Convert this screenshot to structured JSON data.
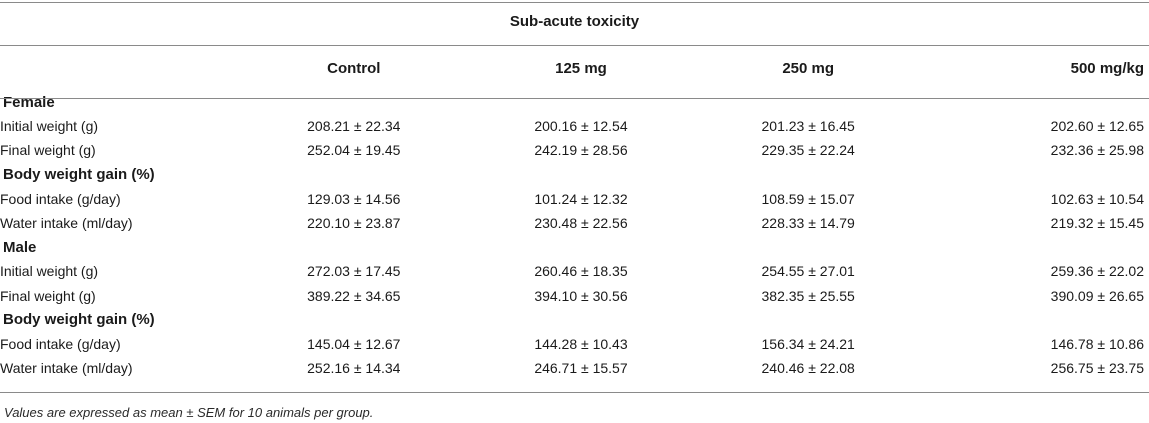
{
  "table": {
    "spanning_header": "Sub-acute toxicity",
    "columns": [
      "",
      "Control",
      "125 mg",
      "250 mg",
      "500 mg/kg"
    ],
    "rows": [
      {
        "type": "section",
        "label": "Female",
        "values": [
          "",
          "",
          "",
          ""
        ]
      },
      {
        "type": "data",
        "label": "Initial weight (g)",
        "values": [
          "208.21 ± 22.34",
          "200.16 ± 12.54",
          "201.23 ± 16.45",
          "202.60 ± 12.65"
        ]
      },
      {
        "type": "data",
        "label": "Final weight (g)",
        "values": [
          "252.04 ± 19.45",
          "242.19 ± 28.56",
          "229.35 ± 22.24",
          "232.36 ± 25.98"
        ]
      },
      {
        "type": "section",
        "label": "Body weight gain (%)",
        "values": [
          "",
          "",
          "",
          ""
        ]
      },
      {
        "type": "data",
        "label": "Food intake (g/day)",
        "values": [
          "129.03 ± 14.56",
          "101.24 ± 12.32",
          "108.59 ± 15.07",
          "102.63 ± 10.54"
        ]
      },
      {
        "type": "data",
        "label": "Water intake (ml/day)",
        "values": [
          "220.10 ± 23.87",
          "230.48 ± 22.56",
          "228.33 ± 14.79",
          "219.32 ± 15.45"
        ]
      },
      {
        "type": "section",
        "label": "Male",
        "values": [
          "",
          "",
          "",
          ""
        ]
      },
      {
        "type": "data",
        "label": "Initial weight (g)",
        "values": [
          "272.03 ± 17.45",
          "260.46 ± 18.35",
          "254.55 ± 27.01",
          "259.36 ± 22.02"
        ]
      },
      {
        "type": "data",
        "label": "Final weight (g)",
        "values": [
          "389.22 ± 34.65",
          "394.10 ± 30.56",
          "382.35 ± 25.55",
          "390.09 ± 26.65"
        ]
      },
      {
        "type": "section",
        "label": "Body weight gain (%)",
        "values": [
          "",
          "",
          "",
          ""
        ]
      },
      {
        "type": "data",
        "label": "Food intake (g/day)",
        "values": [
          "145.04 ± 12.67",
          "144.28 ± 10.43",
          "156.34 ± 24.21",
          "146.78 ± 10.86"
        ]
      },
      {
        "type": "data",
        "label": "Water intake (ml/day)",
        "values": [
          "252.16 ± 14.34",
          "246.71 ± 15.57",
          "240.46 ± 22.08",
          "256.75 ± 23.75"
        ]
      }
    ],
    "footnote": "Values are expressed as mean ± SEM for 10 animals per group."
  }
}
